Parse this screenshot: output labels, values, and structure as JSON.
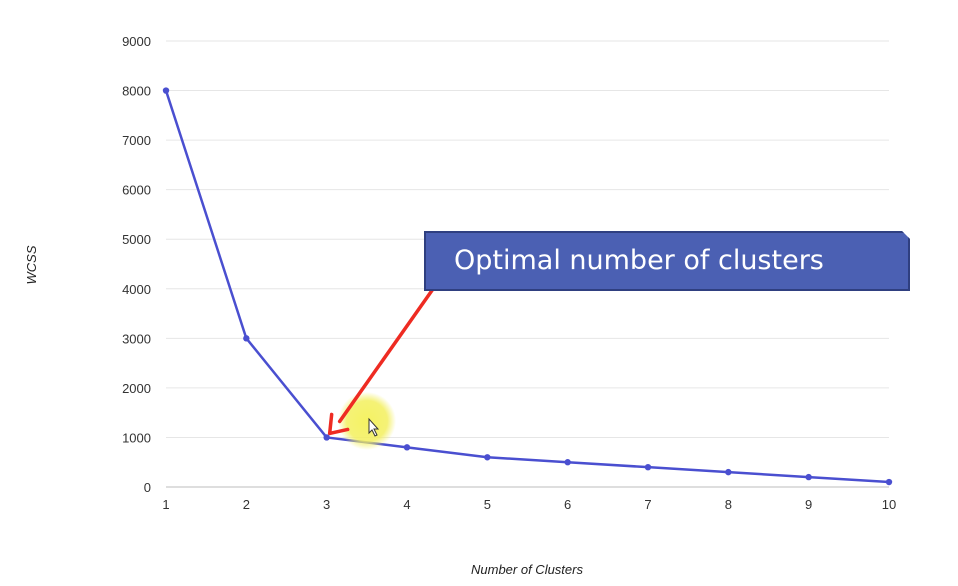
{
  "chart_data": {
    "type": "line",
    "x": [
      1,
      2,
      3,
      4,
      5,
      6,
      7,
      8,
      9,
      10
    ],
    "series": [
      {
        "values": [
          8000,
          3000,
          1000,
          800,
          600,
          500,
          400,
          300,
          200,
          100
        ]
      }
    ],
    "xlabel": "Number of Clusters",
    "ylabel": "WCSS",
    "xlim": [
      1,
      10
    ],
    "ylim": [
      0,
      9000
    ],
    "yticks": [
      0,
      1000,
      2000,
      3000,
      4000,
      5000,
      6000,
      7000,
      8000,
      9000
    ],
    "xticks": [
      1,
      2,
      3,
      4,
      5,
      6,
      7,
      8,
      9,
      10
    ],
    "grid": true,
    "annotation": {
      "text": "Optimal number of clusters",
      "points_to_x": 3,
      "points_to_y": 1000
    }
  },
  "colors": {
    "line": "#4a4fd0",
    "grid": "#e6e6e6",
    "callout_fill": "#4b60b3",
    "callout_border": "#2f3f80",
    "arrow": "#ee2b22",
    "cursor_highlight": "#f3ef5e"
  },
  "cursor": {
    "icon": "mouse-pointer-icon"
  }
}
